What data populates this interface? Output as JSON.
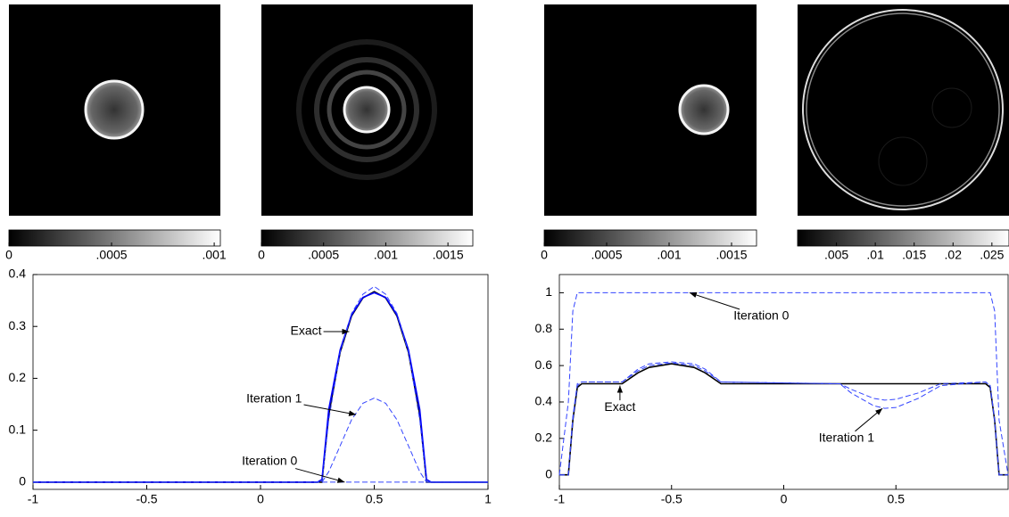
{
  "chart_data": [
    {
      "type": "image",
      "colorbar": {
        "clim": [
          0,
          0.00103
        ],
        "ticks": [
          0,
          {
            "value": 0.0005,
            "label": ".0005"
          },
          {
            "value": 0.001,
            "label": ".001"
          }
        ]
      }
    },
    {
      "type": "image",
      "colorbar": {
        "clim": [
          0,
          0.0017
        ],
        "ticks": [
          0,
          {
            "value": 0.0005,
            "label": ".0005"
          },
          {
            "value": 0.001,
            "label": ".001"
          },
          {
            "value": 0.0015,
            "label": ".0015"
          }
        ]
      }
    },
    {
      "type": "image",
      "colorbar": {
        "clim": [
          0,
          0.0017
        ],
        "ticks": [
          0,
          {
            "value": 0.0005,
            "label": ".0005"
          },
          {
            "value": 0.001,
            "label": ".001"
          },
          {
            "value": 0.0015,
            "label": ".0015"
          }
        ]
      }
    },
    {
      "type": "image",
      "colorbar": {
        "clim": [
          0,
          0.0272
        ],
        "ticks": [
          {
            "value": 0.005,
            "label": ".005"
          },
          {
            "value": 0.01,
            "label": ".01"
          },
          {
            "value": 0.015,
            "label": ".015"
          },
          {
            "value": 0.02,
            "label": ".02"
          },
          {
            "value": 0.025,
            "label": ".025"
          }
        ]
      }
    },
    {
      "type": "line",
      "xlim": [
        -1,
        1
      ],
      "ylim": [
        -0.014,
        0.4
      ],
      "xticks": [
        -1,
        -0.5,
        0,
        0.5,
        1
      ],
      "yticks": [
        0,
        0.1,
        0.2,
        0.3,
        0.4
      ],
      "x": [
        -1,
        0.25,
        0.27,
        0.3,
        0.35,
        0.4,
        0.45,
        0.5,
        0.55,
        0.6,
        0.65,
        0.7,
        0.73,
        0.75,
        1
      ],
      "series": [
        {
          "color": "#000000",
          "style": "solid",
          "values": [
            0,
            0,
            0,
            0.13,
            0.25,
            0.32,
            0.355,
            0.367,
            0.355,
            0.32,
            0.25,
            0.13,
            0,
            0,
            0
          ]
        },
        {
          "color": "#0000ff",
          "style": "solid",
          "values": [
            0,
            0,
            0.005,
            0.14,
            0.255,
            0.322,
            0.356,
            0.365,
            0.356,
            0.322,
            0.255,
            0.14,
            0.005,
            0,
            0
          ]
        },
        {
          "color": "#3344ff",
          "style": "dashed",
          "values": [
            0,
            0,
            0,
            0.12,
            0.25,
            0.325,
            0.362,
            0.377,
            0.362,
            0.325,
            0.25,
            0.12,
            0,
            0,
            0
          ]
        },
        {
          "color": "#3344ff",
          "style": "dashed",
          "values": [
            0,
            0,
            0,
            0.02,
            0.07,
            0.12,
            0.152,
            0.162,
            0.152,
            0.12,
            0.07,
            0.02,
            0,
            0,
            0
          ]
        },
        {
          "color": "#3344ff",
          "style": "dashed",
          "values": [
            0,
            0,
            0,
            0,
            0,
            0,
            0,
            0,
            0,
            0,
            0,
            0,
            0,
            0,
            0
          ]
        }
      ],
      "annotations": [
        {
          "text": "Exact",
          "xy": [
            0.39,
            0.29
          ],
          "xytext": [
            0.2,
            0.29
          ]
        },
        {
          "text": "Iteration 1",
          "xy": [
            0.42,
            0.13
          ],
          "xytext": [
            0.06,
            0.16
          ]
        },
        {
          "text": "Iteration 0",
          "xy": [
            0.37,
            0
          ],
          "xytext": [
            0.04,
            0.04
          ]
        }
      ]
    },
    {
      "type": "line",
      "xlim": [
        -1,
        1
      ],
      "ylim": [
        -0.08,
        1.1
      ],
      "xticks": [
        -1,
        -0.5,
        0,
        0.5
      ],
      "yticks": [
        0,
        0.2,
        0.4,
        0.6,
        0.8,
        1
      ],
      "x": [
        -1,
        -0.96,
        -0.94,
        -0.92,
        -0.9,
        -0.72,
        -0.65,
        -0.6,
        -0.5,
        -0.4,
        -0.35,
        -0.28,
        0.25,
        0.3,
        0.4,
        0.45,
        0.5,
        0.6,
        0.7,
        0.9,
        0.92,
        0.94,
        0.96,
        1
      ],
      "series": [
        {
          "color": "#000000",
          "style": "solid",
          "values": [
            0,
            0,
            0.3,
            0.48,
            0.5,
            0.5,
            0.56,
            0.59,
            0.61,
            0.59,
            0.56,
            0.5,
            0.5,
            0.5,
            0.5,
            0.5,
            0.5,
            0.5,
            0.5,
            0.5,
            0.48,
            0.3,
            0,
            0
          ]
        },
        {
          "color": "#3344ff",
          "style": "dashed",
          "values": [
            0,
            0,
            0.3,
            0.49,
            0.51,
            0.51,
            0.57,
            0.6,
            0.615,
            0.6,
            0.57,
            0.51,
            0.5,
            0.47,
            0.42,
            0.41,
            0.415,
            0.45,
            0.5,
            0.51,
            0.49,
            0.3,
            0,
            0
          ]
        },
        {
          "color": "#3344ff",
          "style": "dashed",
          "values": [
            0,
            0,
            0.32,
            0.5,
            0.51,
            0.51,
            0.58,
            0.61,
            0.62,
            0.61,
            0.58,
            0.51,
            0.5,
            0.45,
            0.38,
            0.365,
            0.37,
            0.42,
            0.49,
            0.51,
            0.49,
            0.3,
            0,
            0
          ]
        },
        {
          "color": "#3344ff",
          "style": "dashed",
          "values": [
            0,
            0.4,
            0.9,
            1,
            1,
            1,
            1,
            1,
            1,
            1,
            1,
            1,
            1,
            1,
            1,
            1,
            1,
            1,
            1,
            1,
            1,
            0.9,
            0.3,
            0
          ]
        }
      ],
      "annotations": [
        {
          "text": "Iteration 0",
          "xy": [
            -0.42,
            1
          ],
          "xytext": [
            -0.1,
            0.87
          ]
        },
        {
          "text": "Exact",
          "xy": [
            -0.73,
            0.49
          ],
          "xytext": [
            -0.73,
            0.37
          ]
        },
        {
          "text": "Iteration 1",
          "xy": [
            0.44,
            0.365
          ],
          "xytext": [
            0.28,
            0.2
          ]
        }
      ]
    }
  ]
}
